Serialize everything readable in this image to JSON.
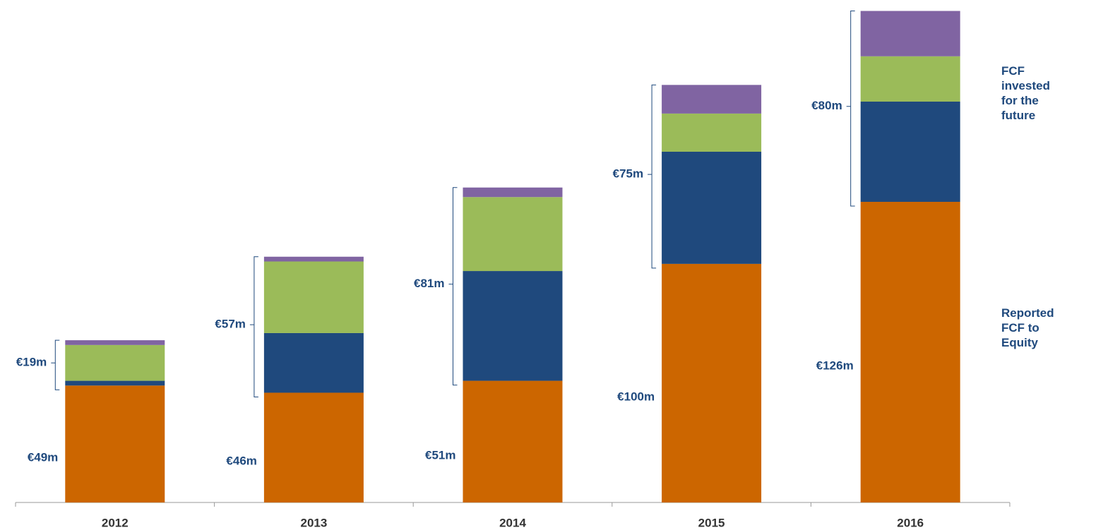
{
  "chart_data": {
    "type": "stacked_bar",
    "categories": [
      "2012",
      "2013",
      "2014",
      "2015",
      "2016"
    ],
    "series": [
      {
        "name": "Reported FCF to Equity",
        "color": "#cc6600",
        "values": [
          49,
          46,
          51,
          100,
          126
        ],
        "value_labels": [
          "€49m",
          "€46m",
          "€51m",
          "€100m",
          "€126m"
        ]
      },
      {
        "color": "#1f497d",
        "values": [
          2,
          25,
          46,
          47,
          42
        ]
      },
      {
        "color": "#9bbb59",
        "values": [
          15,
          30,
          31,
          16,
          19
        ]
      },
      {
        "color": "#8064a2",
        "values": [
          2,
          2,
          4,
          12,
          19
        ]
      }
    ],
    "group_label": "FCF invested for the future",
    "group_totals": [
      {
        "value": 19,
        "label": "€19m"
      },
      {
        "value": 57,
        "label": "€57m"
      },
      {
        "value": 81,
        "label": "€81m"
      },
      {
        "value": 75,
        "label": "€75m"
      },
      {
        "value": 80,
        "label": "€80m"
      }
    ],
    "ylim": [
      0,
      210
    ]
  }
}
